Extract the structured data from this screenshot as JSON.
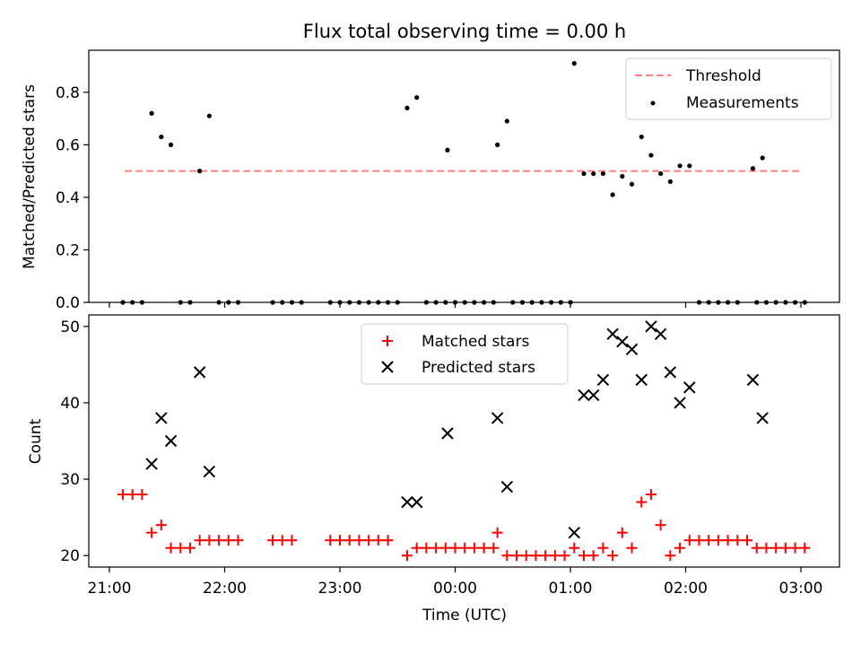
{
  "chart_data": [
    {
      "type": "scatter",
      "title": "Flux total observing time = 0.00 h",
      "xlabel": "",
      "ylabel": "Matched/Predicted stars",
      "x_unit": "time",
      "ylim": [
        0,
        0.96
      ],
      "yticks": [
        "0.0",
        "0.2",
        "0.4",
        "0.6",
        "0.8"
      ],
      "legend": {
        "placement": "top-right",
        "entries": [
          "Threshold",
          "Measurements"
        ]
      },
      "threshold": {
        "name": "Threshold",
        "y": 0.5,
        "x_start": "21:08",
        "x_end": "03:00",
        "color": "#ff7f7f",
        "style": "dashed"
      },
      "series": [
        {
          "name": "Measurements",
          "color": "#000000",
          "marker": "dot",
          "points": [
            [
              "21:07",
              0.0
            ],
            [
              "21:12",
              0.0
            ],
            [
              "21:17",
              0.0
            ],
            [
              "21:22",
              0.72
            ],
            [
              "21:27",
              0.63
            ],
            [
              "21:32",
              0.6
            ],
            [
              "21:37",
              0.0
            ],
            [
              "21:42",
              0.0
            ],
            [
              "21:47",
              0.5
            ],
            [
              "21:52",
              0.71
            ],
            [
              "21:57",
              0.0
            ],
            [
              "22:02",
              0.0
            ],
            [
              "22:07",
              0.0
            ],
            [
              "22:25",
              0.0
            ],
            [
              "22:30",
              0.0
            ],
            [
              "22:35",
              0.0
            ],
            [
              "22:40",
              0.0
            ],
            [
              "22:55",
              0.0
            ],
            [
              "23:00",
              0.0
            ],
            [
              "23:05",
              0.0
            ],
            [
              "23:10",
              0.0
            ],
            [
              "23:15",
              0.0
            ],
            [
              "23:20",
              0.0
            ],
            [
              "23:25",
              0.0
            ],
            [
              "23:30",
              0.0
            ],
            [
              "23:35",
              0.74
            ],
            [
              "23:40",
              0.78
            ],
            [
              "23:45",
              0.0
            ],
            [
              "23:50",
              0.0
            ],
            [
              "23:55",
              0.0
            ],
            [
              "23:56",
              0.58
            ],
            [
              "00:00",
              0.0
            ],
            [
              "00:05",
              0.0
            ],
            [
              "00:10",
              0.0
            ],
            [
              "00:15",
              0.0
            ],
            [
              "00:20",
              0.0
            ],
            [
              "00:22",
              0.6
            ],
            [
              "00:27",
              0.69
            ],
            [
              "00:30",
              0.0
            ],
            [
              "00:35",
              0.0
            ],
            [
              "00:40",
              0.0
            ],
            [
              "00:45",
              0.0
            ],
            [
              "00:50",
              0.0
            ],
            [
              "00:55",
              0.0
            ],
            [
              "01:00",
              0.0
            ],
            [
              "01:02",
              0.91
            ],
            [
              "01:07",
              0.49
            ],
            [
              "01:12",
              0.49
            ],
            [
              "01:17",
              0.49
            ],
            [
              "01:22",
              0.41
            ],
            [
              "01:27",
              0.48
            ],
            [
              "01:32",
              0.45
            ],
            [
              "01:37",
              0.63
            ],
            [
              "01:42",
              0.56
            ],
            [
              "01:47",
              0.49
            ],
            [
              "01:52",
              0.46
            ],
            [
              "01:57",
              0.52
            ],
            [
              "02:02",
              0.52
            ],
            [
              "02:07",
              0.0
            ],
            [
              "02:12",
              0.0
            ],
            [
              "02:17",
              0.0
            ],
            [
              "02:22",
              0.0
            ],
            [
              "02:27",
              0.0
            ],
            [
              "02:35",
              0.51
            ],
            [
              "02:40",
              0.55
            ],
            [
              "02:37",
              0.0
            ],
            [
              "02:42",
              0.0
            ],
            [
              "02:47",
              0.0
            ],
            [
              "02:52",
              0.0
            ],
            [
              "02:57",
              0.0
            ],
            [
              "03:02",
              0.0
            ]
          ]
        }
      ]
    },
    {
      "type": "scatter",
      "title": "",
      "xlabel": "Time (UTC)",
      "ylabel": "Count",
      "ylim": [
        18.5,
        51.5
      ],
      "yticks": [
        "20",
        "30",
        "40",
        "50"
      ],
      "xticks": [
        "21:00",
        "22:00",
        "23:00",
        "00:00",
        "01:00",
        "02:00",
        "03:00"
      ],
      "legend": {
        "placement": "top-center",
        "entries": [
          "Matched stars",
          "Predicted stars"
        ]
      },
      "series": [
        {
          "name": "Matched stars",
          "color": "#ff0000",
          "marker": "plus",
          "points": [
            [
              "21:07",
              28
            ],
            [
              "21:12",
              28
            ],
            [
              "21:17",
              28
            ],
            [
              "21:22",
              23
            ],
            [
              "21:27",
              24
            ],
            [
              "21:32",
              21
            ],
            [
              "21:37",
              21
            ],
            [
              "21:42",
              21
            ],
            [
              "21:47",
              22
            ],
            [
              "21:52",
              22
            ],
            [
              "21:57",
              22
            ],
            [
              "22:02",
              22
            ],
            [
              "22:07",
              22
            ],
            [
              "22:25",
              22
            ],
            [
              "22:30",
              22
            ],
            [
              "22:35",
              22
            ],
            [
              "22:55",
              22
            ],
            [
              "23:00",
              22
            ],
            [
              "23:05",
              22
            ],
            [
              "23:10",
              22
            ],
            [
              "23:15",
              22
            ],
            [
              "23:20",
              22
            ],
            [
              "23:25",
              22
            ],
            [
              "23:35",
              20
            ],
            [
              "23:40",
              21
            ],
            [
              "23:45",
              21
            ],
            [
              "23:50",
              21
            ],
            [
              "23:55",
              21
            ],
            [
              "00:00",
              21
            ],
            [
              "00:05",
              21
            ],
            [
              "00:10",
              21
            ],
            [
              "00:15",
              21
            ],
            [
              "00:20",
              21
            ],
            [
              "00:22",
              23
            ],
            [
              "00:27",
              20
            ],
            [
              "00:32",
              20
            ],
            [
              "00:37",
              20
            ],
            [
              "00:42",
              20
            ],
            [
              "00:47",
              20
            ],
            [
              "00:52",
              20
            ],
            [
              "00:57",
              20
            ],
            [
              "01:02",
              21
            ],
            [
              "01:07",
              20
            ],
            [
              "01:12",
              20
            ],
            [
              "01:17",
              21
            ],
            [
              "01:22",
              20
            ],
            [
              "01:27",
              23
            ],
            [
              "01:32",
              21
            ],
            [
              "01:37",
              27
            ],
            [
              "01:42",
              28
            ],
            [
              "01:47",
              24
            ],
            [
              "01:52",
              20
            ],
            [
              "01:57",
              21
            ],
            [
              "02:02",
              22
            ],
            [
              "02:07",
              22
            ],
            [
              "02:12",
              22
            ],
            [
              "02:17",
              22
            ],
            [
              "02:22",
              22
            ],
            [
              "02:27",
              22
            ],
            [
              "02:32",
              22
            ],
            [
              "02:37",
              21
            ],
            [
              "02:42",
              21
            ],
            [
              "02:47",
              21
            ],
            [
              "02:52",
              21
            ],
            [
              "02:57",
              21
            ],
            [
              "03:02",
              21
            ]
          ]
        },
        {
          "name": "Predicted stars",
          "color": "#000000",
          "marker": "x",
          "points": [
            [
              "21:22",
              32
            ],
            [
              "21:27",
              38
            ],
            [
              "21:32",
              35
            ],
            [
              "21:47",
              44
            ],
            [
              "21:52",
              31
            ],
            [
              "23:35",
              27
            ],
            [
              "23:40",
              27
            ],
            [
              "23:56",
              36
            ],
            [
              "00:22",
              38
            ],
            [
              "00:27",
              29
            ],
            [
              "01:02",
              23
            ],
            [
              "01:07",
              41
            ],
            [
              "01:12",
              41
            ],
            [
              "01:17",
              43
            ],
            [
              "01:22",
              49
            ],
            [
              "01:27",
              48
            ],
            [
              "01:32",
              47
            ],
            [
              "01:37",
              43
            ],
            [
              "01:42",
              50
            ],
            [
              "01:47",
              49
            ],
            [
              "01:52",
              44
            ],
            [
              "01:57",
              40
            ],
            [
              "02:02",
              42
            ],
            [
              "02:35",
              43
            ],
            [
              "02:40",
              38
            ]
          ]
        }
      ]
    }
  ]
}
